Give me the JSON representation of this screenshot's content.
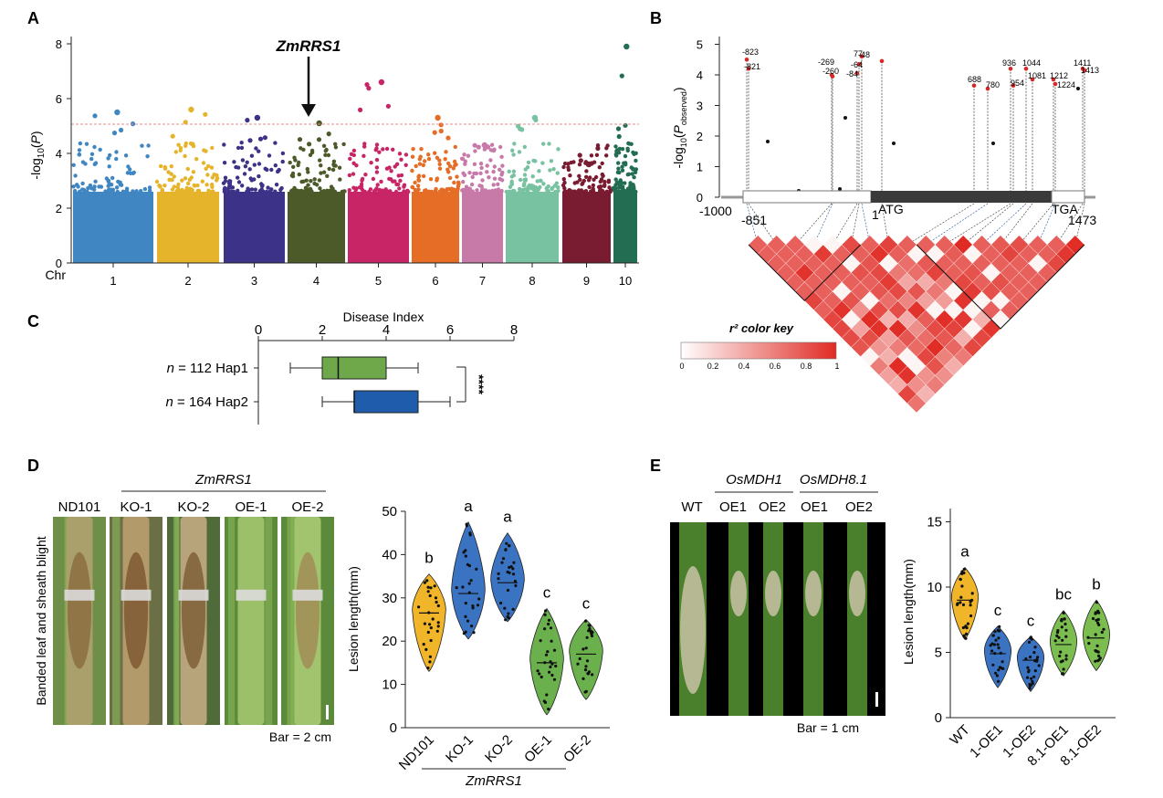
{
  "panels": {
    "a": "A",
    "b": "B",
    "c": "C",
    "d": "D",
    "e": "E"
  },
  "colors": {
    "chr": [
      "#3f86c2",
      "#e5b42a",
      "#3c3287",
      "#4c5a29",
      "#c72566",
      "#e56d26",
      "#c77aa8",
      "#78c2a1",
      "#7a1c31",
      "#236d52"
    ],
    "hap1": "#6ea84a",
    "hap2": "#1f5cac",
    "ld": "#e02b24",
    "violin": [
      "#f0b528",
      "#3a73c2",
      "#3a73c2",
      "#6ab04c",
      "#6ab04c"
    ],
    "violinE": [
      "#f0b528",
      "#3a73c2",
      "#3a73c2",
      "#7bbd4f",
      "#7bbd4f"
    ]
  },
  "manhattan": {
    "gene_label": "ZmRRS1",
    "ylabel": "-log10(P)",
    "yticks": [
      "0",
      "2",
      "4",
      "6",
      "8"
    ],
    "chr_label": "Chr",
    "chromosomes": [
      "1",
      "2",
      "3",
      "4",
      "5",
      "6",
      "7",
      "8",
      "9",
      "10"
    ],
    "threshold": 5.0
  },
  "gene_structure": {
    "ylabel": "-log10(Pobserved)",
    "yticks": [
      "0",
      "1",
      "2",
      "3",
      "4",
      "5"
    ],
    "positions": [
      "-1000",
      "-851",
      "1",
      "ATG",
      "TGA",
      "1473"
    ],
    "snps": [
      "-823",
      "-821",
      "-269",
      "-260",
      "-84",
      "-64",
      "-48",
      "77",
      "688",
      "780",
      "936",
      "954",
      "1044",
      "1081",
      "1212",
      "1224",
      "1411",
      "1413"
    ],
    "color_key_title": "r² color key",
    "color_key_ticks": [
      "0",
      "0.2",
      "0.4",
      "0.6",
      "0.8",
      "1"
    ]
  },
  "chart_data": [
    {
      "type": "box",
      "title": "Disease Index",
      "xlim": [
        0,
        8
      ],
      "xticks": [
        "0",
        "2",
        "4",
        "6",
        "8"
      ],
      "groups": [
        {
          "n_label": "n = 112",
          "n_prefix": "n",
          "n_value": "= 112",
          "name": "Hap1",
          "whisker_low": 1.0,
          "q1": 2.0,
          "median": 2.5,
          "q3": 4.0,
          "whisker_high": 5.0
        },
        {
          "n_label": "n = 164",
          "n_prefix": "n",
          "n_value": "= 164",
          "name": "Hap2",
          "whisker_low": 2.0,
          "q1": 3.0,
          "median": 3.0,
          "q3": 5.0,
          "whisker_high": 6.0
        }
      ],
      "significance": "****"
    },
    {
      "type": "violin",
      "ylabel": "Lesion length(mm)",
      "ylim": [
        0,
        50
      ],
      "yticks": [
        "0",
        "10",
        "20",
        "30",
        "40",
        "50"
      ],
      "categories": [
        "ND101",
        "KO-1",
        "KO-2",
        "OE-1",
        "OE-2"
      ],
      "median": [
        26.5,
        31,
        33.5,
        15,
        17
      ],
      "min": [
        13,
        20.5,
        24.5,
        3,
        6.5
      ],
      "max": [
        35.5,
        47.5,
        45,
        27.5,
        25
      ],
      "letters": [
        "b",
        "a",
        "a",
        "c",
        "c"
      ],
      "group_label": "ZmRRS1"
    },
    {
      "type": "violin",
      "ylabel": "Lesion length(mm)",
      "ylim": [
        0,
        15
      ],
      "yticks": [
        "0",
        "5",
        "10",
        "15"
      ],
      "categories": [
        "WT",
        "1-OE1",
        "1-OE2",
        "8.1-OE1",
        "8.1-OE2"
      ],
      "median": [
        9.0,
        4.9,
        4.4,
        5.6,
        6.1
      ],
      "min": [
        6.0,
        2.3,
        2.0,
        3.2,
        3.6
      ],
      "max": [
        11.5,
        7.0,
        6.2,
        8.2,
        9.0
      ],
      "letters": [
        "a",
        "c",
        "c",
        "bc",
        "b"
      ]
    }
  ],
  "photos_d": {
    "gene_label": "ZmRRS1",
    "labels": [
      "ND101",
      "KO-1",
      "KO-2",
      "OE-1",
      "OE-2"
    ],
    "side_label": "Banded leaf and sheath blight",
    "bar": "Bar = 2 cm"
  },
  "photos_e": {
    "groups": [
      "OsMDH1",
      "OsMDH8.1"
    ],
    "labels": [
      "WT",
      "OE1",
      "OE2",
      "OE1",
      "OE2"
    ],
    "bar": "Bar = 1 cm"
  }
}
